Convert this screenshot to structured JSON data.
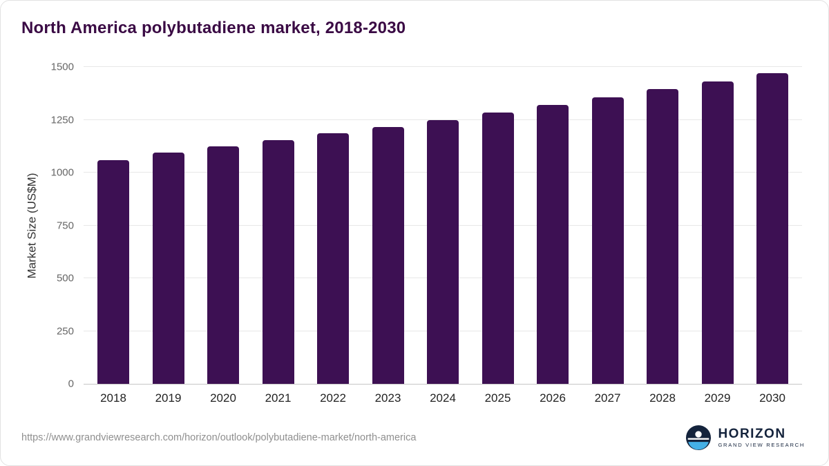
{
  "title": "North America polybutadiene market, 2018-2030",
  "chart_data": {
    "type": "bar",
    "title": "North America polybutadiene market, 2018-2030",
    "categories": [
      "2018",
      "2019",
      "2020",
      "2021",
      "2022",
      "2023",
      "2024",
      "2025",
      "2026",
      "2027",
      "2028",
      "2029",
      "2030"
    ],
    "values": [
      1060,
      1095,
      1125,
      1155,
      1185,
      1215,
      1250,
      1285,
      1320,
      1355,
      1395,
      1430,
      1470
    ],
    "xlabel": "",
    "ylabel": "Market Size (US$M)",
    "ylim": [
      0,
      1500
    ],
    "yticks": [
      0,
      250,
      500,
      750,
      1000,
      1250,
      1500
    ],
    "grid": true,
    "legend": "none",
    "bar_color": "#3d1053"
  },
  "colors": {
    "title": "#3a0a44",
    "bar": "#3d1053",
    "grid": "#e7e7e7",
    "axis_text": "#666666"
  },
  "footer": {
    "source_url": "https://www.grandviewresearch.com/horizon/outlook/polybutadiene-market/north-america",
    "logo_primary": "HORIZON",
    "logo_secondary": "GRAND VIEW RESEARCH"
  }
}
